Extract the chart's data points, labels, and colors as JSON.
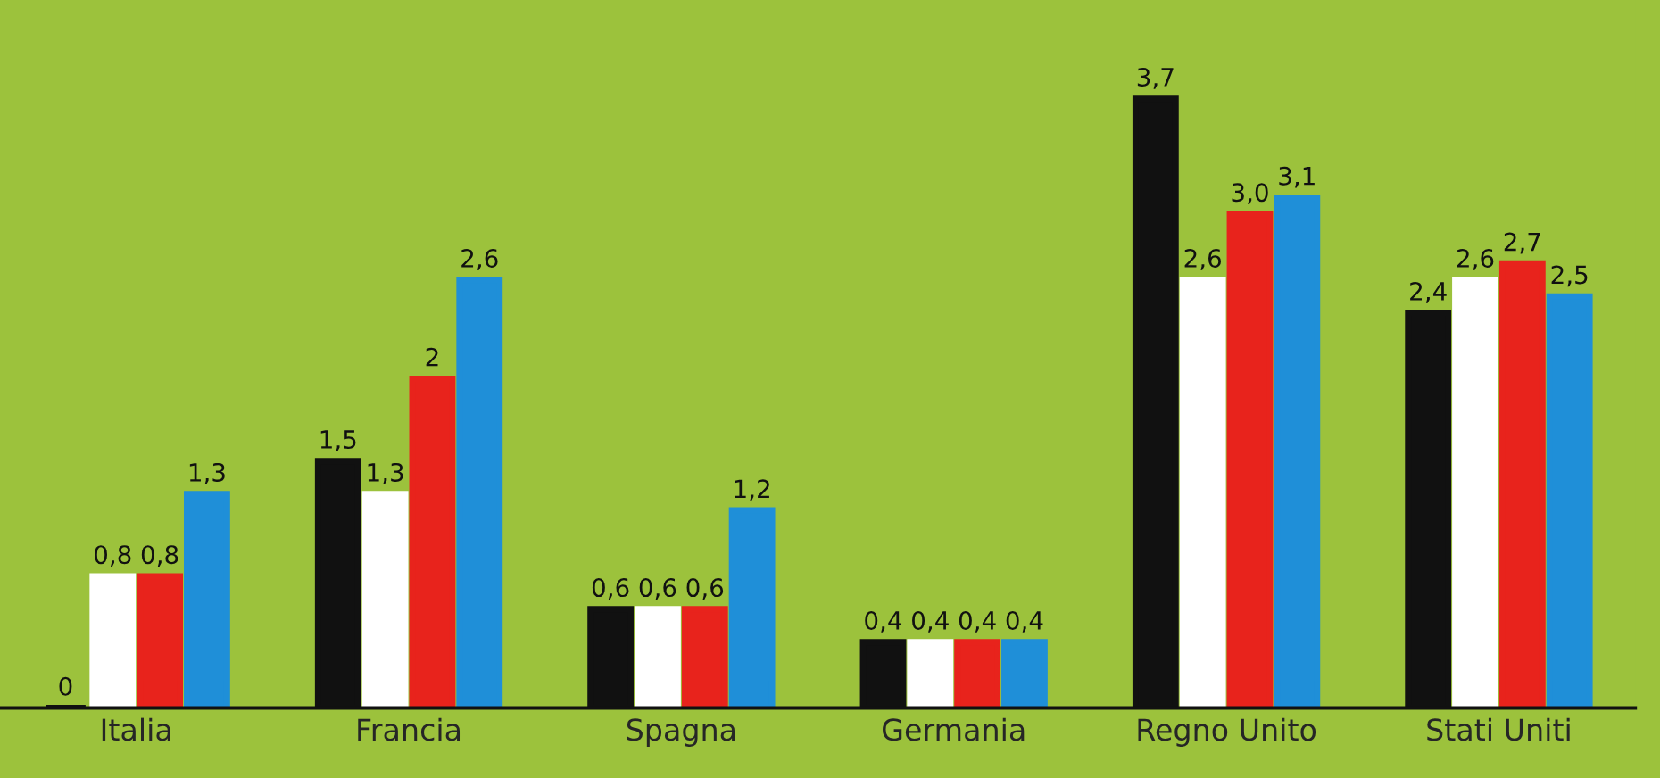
{
  "chart_data": {
    "type": "bar",
    "categories": [
      "Italia",
      "Francia",
      "Spagna",
      "Germania",
      "Regno Unito",
      "Stati Uniti"
    ],
    "ylim": [
      0,
      4.3
    ],
    "tick_labels": "x",
    "grid": false,
    "legend": false,
    "series": [
      {
        "color": "#111111",
        "values": [
          0,
          1.5,
          0.6,
          0.4,
          3.7,
          2.4
        ],
        "value_labels": [
          "0",
          "1,5",
          "0,6",
          "0,4",
          "3,7",
          "2,4"
        ]
      },
      {
        "color": "#ffffff",
        "values": [
          0.8,
          1.3,
          0.6,
          0.4,
          2.6,
          2.6
        ],
        "value_labels": [
          "0,8",
          "1,3",
          "0,6",
          "0,4",
          "2,6",
          "2,6"
        ]
      },
      {
        "color": "#e8231c",
        "values": [
          0.8,
          2,
          0.6,
          0.4,
          3.0,
          2.7
        ],
        "value_labels": [
          "0,8",
          "2",
          "0,6",
          "0,4",
          "3,0",
          "2,7"
        ]
      },
      {
        "color": "#1f8fd8",
        "values": [
          1.3,
          2.6,
          1.2,
          0.4,
          3.1,
          2.5
        ],
        "value_labels": [
          "1,3",
          "2,6",
          "1,2",
          "0,4",
          "3,1",
          "2,5"
        ]
      }
    ]
  }
}
